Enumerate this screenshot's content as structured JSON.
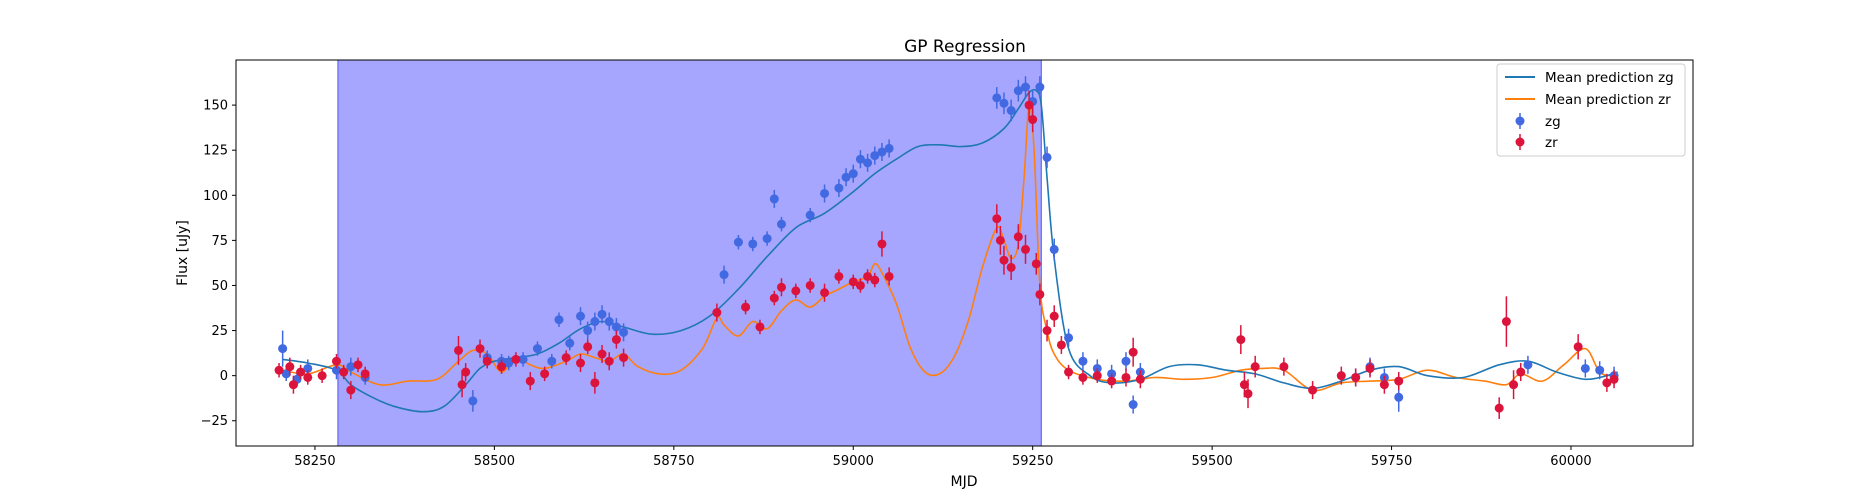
{
  "chart_data": {
    "type": "scatter",
    "title": "GP Regression",
    "xlabel": "MJD",
    "ylabel": "Flux [uJy]",
    "xlim": [
      58140,
      60170
    ],
    "ylim": [
      -39,
      175
    ],
    "x_ticks": [
      58250,
      58500,
      58750,
      59000,
      59250,
      59500,
      59750,
      60000
    ],
    "x_tick_labels": [
      "58250",
      "58500",
      "58750",
      "59000",
      "59250",
      "59500",
      "59750",
      "60000"
    ],
    "y_ticks": [
      -25,
      0,
      25,
      50,
      75,
      100,
      125,
      150
    ],
    "y_tick_labels": [
      "−25",
      "0",
      "25",
      "50",
      "75",
      "100",
      "125",
      "150"
    ],
    "grid": false,
    "legend_placement": "top-right",
    "shaded_region": {
      "x_start": 58282,
      "x_end": 59262,
      "color": "#a6a6ff"
    },
    "series": [
      {
        "name": "Mean prediction zg",
        "kind": "line",
        "color": "#1f77b4",
        "x": [
          58205,
          58240,
          58280,
          58300,
          58330,
          58360,
          58400,
          58430,
          58460,
          58480,
          58500,
          58530,
          58560,
          58590,
          58620,
          58650,
          58680,
          58720,
          58760,
          58800,
          58840,
          58880,
          58920,
          58960,
          59000,
          59030,
          59060,
          59090,
          59120,
          59150,
          59180,
          59210,
          59230,
          59245,
          59255,
          59262,
          59270,
          59280,
          59300,
          59330,
          59360,
          59400,
          59440,
          59480,
          59520,
          59560,
          59600,
          59640,
          59680,
          59720,
          59760,
          59800,
          59850,
          59900,
          59940,
          59980,
          60020,
          60050,
          60065
        ],
        "y": [
          9,
          7,
          3,
          -5,
          -12,
          -17,
          -20,
          -17,
          -5,
          4,
          8,
          10,
          12,
          18,
          26,
          30,
          27,
          23,
          25,
          33,
          48,
          66,
          82,
          90,
          102,
          112,
          120,
          127,
          128,
          127,
          129,
          137,
          148,
          157,
          158,
          150,
          110,
          65,
          15,
          0,
          -4,
          -2,
          5,
          6,
          3,
          1,
          -4,
          -7,
          -3,
          3,
          5,
          0,
          -1,
          6,
          8,
          2,
          -2,
          0,
          2
        ]
      },
      {
        "name": "Mean prediction zr",
        "kind": "line",
        "color": "#ff7f0e",
        "x": [
          58205,
          58240,
          58280,
          58300,
          58340,
          58380,
          58420,
          58450,
          58470,
          58490,
          58510,
          58530,
          58550,
          58570,
          58600,
          58620,
          58640,
          58660,
          58680,
          58700,
          58730,
          58760,
          58790,
          58810,
          58820,
          58840,
          58860,
          58880,
          58900,
          58920,
          58940,
          58960,
          58980,
          59000,
          59020,
          59030,
          59040,
          59060,
          59080,
          59100,
          59120,
          59140,
          59160,
          59180,
          59200,
          59210,
          59220,
          59230,
          59238,
          59245,
          59252,
          59260,
          59270,
          59280,
          59300,
          59340,
          59380,
          59420,
          59460,
          59500,
          59540,
          59570,
          59600,
          59640,
          59680,
          59720,
          59760,
          59800,
          59840,
          59880,
          59910,
          59930,
          59960,
          59990,
          60020,
          60040,
          60060
        ],
        "y": [
          3,
          1,
          6,
          2,
          -5,
          -3,
          -2,
          8,
          14,
          12,
          2,
          10,
          6,
          4,
          8,
          12,
          10,
          8,
          12,
          5,
          1,
          3,
          15,
          32,
          28,
          22,
          30,
          26,
          36,
          42,
          38,
          44,
          48,
          52,
          55,
          62,
          57,
          40,
          15,
          2,
          1,
          10,
          30,
          60,
          82,
          75,
          65,
          73,
          110,
          150,
          125,
          50,
          25,
          12,
          3,
          -2,
          -3,
          -1,
          -2,
          -1,
          3,
          4,
          3,
          -8,
          -4,
          -3,
          -2,
          3,
          -1,
          -3,
          -5,
          1,
          -3,
          6,
          15,
          2,
          0
        ]
      },
      {
        "name": "zg",
        "kind": "errorbar",
        "color": "#4169e1",
        "x": [
          58205,
          58210,
          58225,
          58240,
          58280,
          58300,
          58320,
          58470,
          58490,
          58510,
          58520,
          58540,
          58560,
          58580,
          58590,
          58605,
          58620,
          58630,
          58640,
          58650,
          58660,
          58670,
          58680,
          58820,
          58840,
          58860,
          58880,
          58890,
          58900,
          58940,
          58960,
          58980,
          58990,
          59000,
          59010,
          59020,
          59030,
          59040,
          59050,
          59200,
          59210,
          59220,
          59230,
          59240,
          59250,
          59260,
          59270,
          59280,
          59300,
          59320,
          59340,
          59360,
          59380,
          59390,
          59400,
          59700,
          59720,
          59740,
          59760,
          59940,
          60020,
          60040,
          60060
        ],
        "y": [
          15,
          1,
          -2,
          4,
          3,
          5,
          -1,
          -14,
          10,
          8,
          7,
          9,
          15,
          8,
          31,
          18,
          33,
          25,
          30,
          34,
          30,
          27,
          24,
          56,
          74,
          73,
          76,
          98,
          84,
          89,
          101,
          104,
          110,
          112,
          120,
          118,
          122,
          124,
          126,
          154,
          151,
          147,
          158,
          160,
          152,
          160,
          121,
          70,
          21,
          8,
          4,
          1,
          8,
          -16,
          2,
          -1,
          5,
          -1,
          -12,
          6,
          4,
          3,
          0
        ],
        "err": [
          10,
          4,
          4,
          5,
          5,
          5,
          4,
          6,
          4,
          4,
          4,
          4,
          4,
          4,
          4,
          4,
          5,
          5,
          5,
          5,
          5,
          5,
          5,
          5,
          4,
          4,
          4,
          5,
          4,
          4,
          5,
          5,
          5,
          5,
          5,
          5,
          5,
          5,
          5,
          6,
          6,
          6,
          6,
          6,
          6,
          6,
          6,
          6,
          5,
          5,
          5,
          5,
          5,
          5,
          5,
          5,
          5,
          5,
          8,
          5,
          5,
          5,
          5
        ]
      },
      {
        "name": "zr",
        "kind": "errorbar",
        "color": "#dc143c",
        "x": [
          58200,
          58215,
          58220,
          58230,
          58240,
          58260,
          58280,
          58290,
          58300,
          58310,
          58320,
          58450,
          58455,
          58460,
          58480,
          58490,
          58510,
          58530,
          58550,
          58570,
          58600,
          58620,
          58630,
          58640,
          58650,
          58660,
          58670,
          58680,
          58810,
          58850,
          58870,
          58890,
          58900,
          58920,
          58940,
          58960,
          58980,
          59000,
          59010,
          59020,
          59030,
          59040,
          59050,
          59200,
          59205,
          59210,
          59220,
          59230,
          59240,
          59245,
          59250,
          59255,
          59260,
          59270,
          59280,
          59290,
          59300,
          59320,
          59340,
          59360,
          59380,
          59390,
          59400,
          59540,
          59545,
          59550,
          59560,
          59600,
          59640,
          59680,
          59700,
          59720,
          59740,
          59760,
          59900,
          59910,
          59920,
          59930,
          60010,
          60050,
          60060
        ],
        "y": [
          3,
          5,
          -5,
          2,
          -1,
          0,
          8,
          2,
          -8,
          6,
          1,
          14,
          -5,
          2,
          15,
          8,
          5,
          9,
          -3,
          1,
          10,
          7,
          16,
          -4,
          12,
          8,
          20,
          10,
          35,
          38,
          27,
          43,
          49,
          47,
          50,
          46,
          55,
          52,
          50,
          55,
          53,
          73,
          55,
          87,
          75,
          64,
          60,
          77,
          70,
          150,
          142,
          62,
          45,
          25,
          33,
          17,
          2,
          -1,
          0,
          -3,
          -1,
          13,
          -2,
          20,
          -5,
          -10,
          5,
          5,
          -8,
          0,
          -1,
          4,
          -5,
          -3,
          -18,
          30,
          -5,
          2,
          16,
          -4,
          -2
        ],
        "err": [
          4,
          5,
          5,
          4,
          4,
          4,
          4,
          4,
          5,
          4,
          4,
          8,
          7,
          5,
          5,
          4,
          4,
          4,
          5,
          4,
          4,
          5,
          4,
          6,
          5,
          5,
          5,
          5,
          5,
          4,
          4,
          4,
          5,
          4,
          4,
          5,
          4,
          4,
          4,
          4,
          4,
          7,
          5,
          8,
          8,
          8,
          7,
          7,
          8,
          8,
          7,
          6,
          6,
          6,
          6,
          5,
          4,
          4,
          4,
          4,
          5,
          8,
          5,
          8,
          7,
          8,
          6,
          5,
          5,
          5,
          5,
          5,
          5,
          5,
          6,
          14,
          8,
          5,
          7,
          5,
          5
        ]
      }
    ]
  }
}
